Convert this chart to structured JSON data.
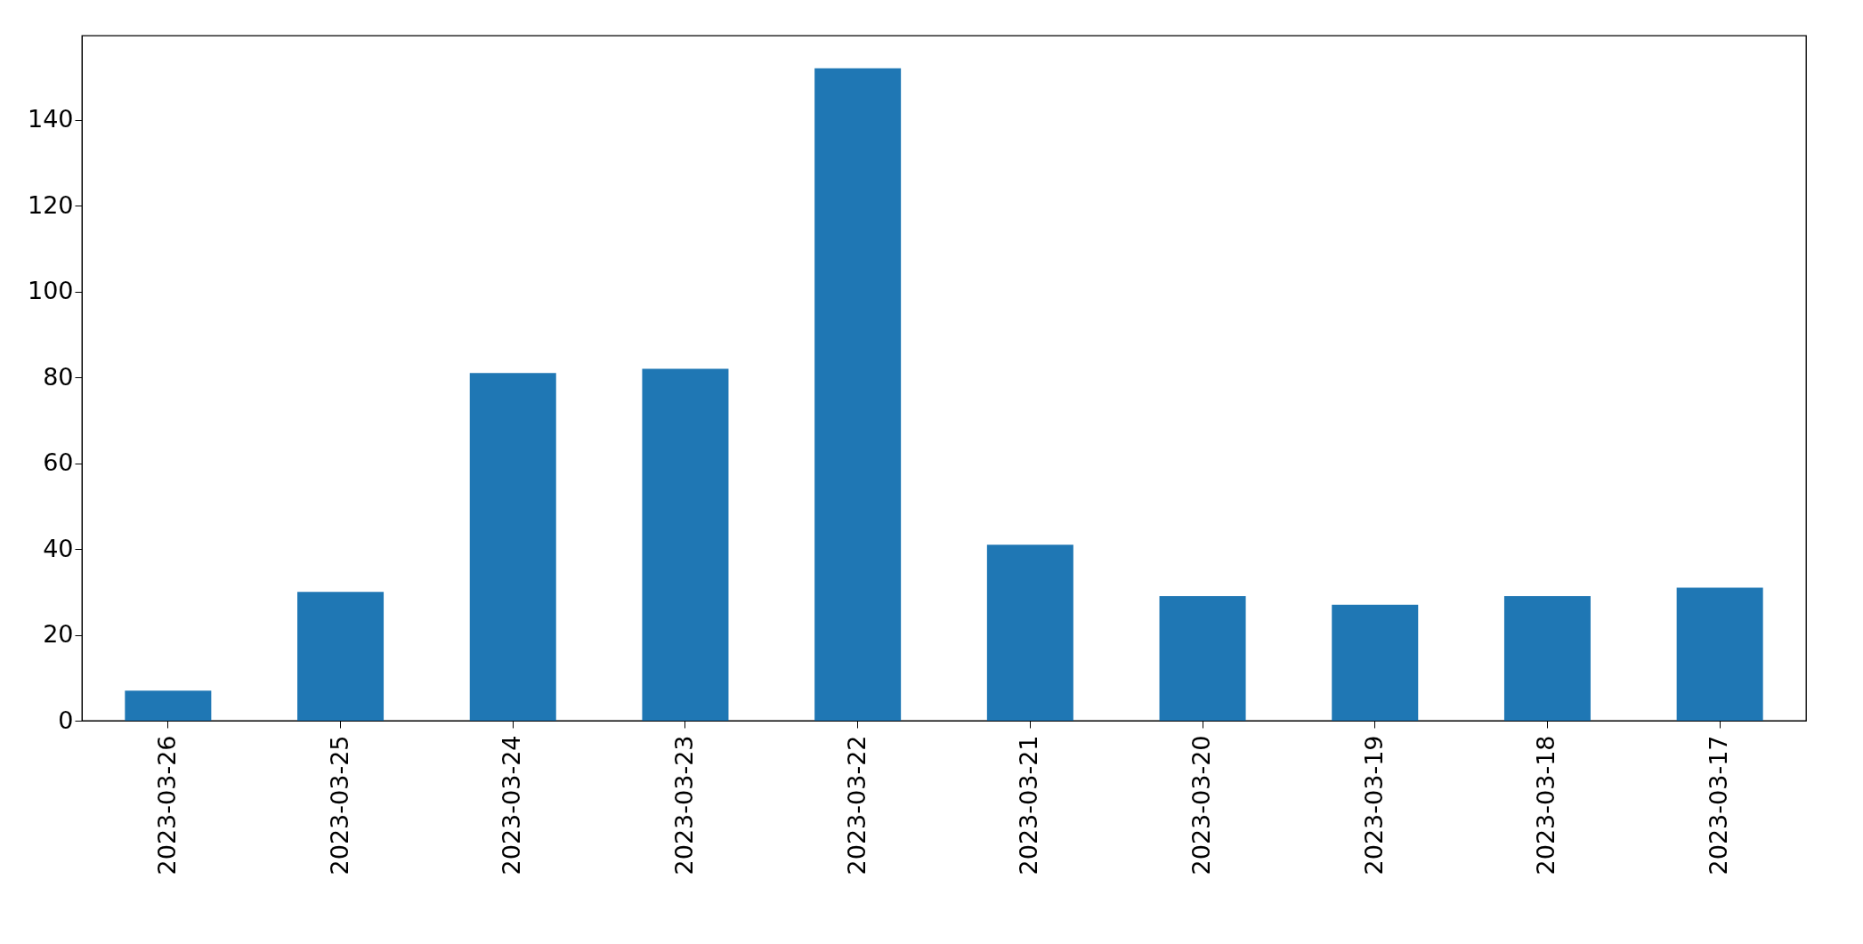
{
  "chart_data": {
    "type": "bar",
    "categories": [
      "2023-03-26",
      "2023-03-25",
      "2023-03-24",
      "2023-03-23",
      "2023-03-22",
      "2023-03-21",
      "2023-03-20",
      "2023-03-19",
      "2023-03-18",
      "2023-03-17"
    ],
    "series": [
      {
        "color": "#1f77b4",
        "values": [
          7,
          30,
          81,
          82,
          152,
          41,
          29,
          27,
          29,
          31
        ]
      }
    ],
    "ylim": [
      0,
      159.6
    ],
    "yticks": [
      0,
      20,
      40,
      60,
      80,
      100,
      120,
      140
    ],
    "grid": false
  }
}
